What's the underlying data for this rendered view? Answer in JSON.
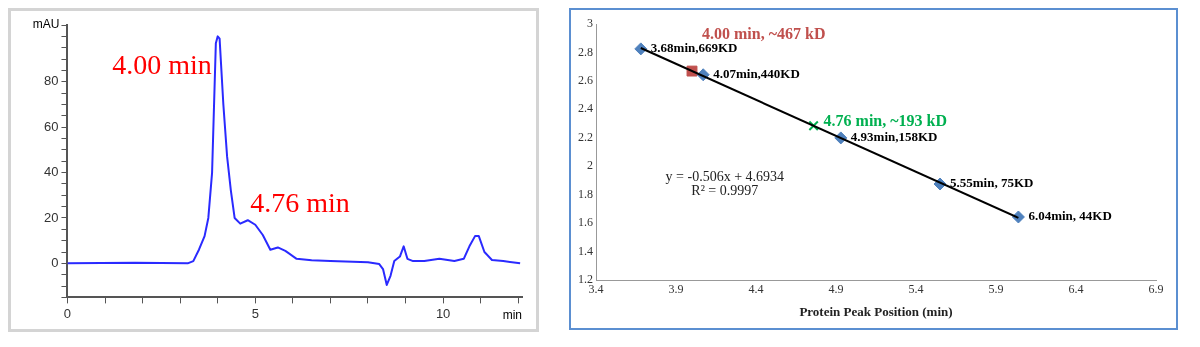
{
  "chart_data": [
    {
      "type": "line",
      "xlabel": "min",
      "ylabel": "mAU",
      "color": "#2a2aff",
      "marker": "none",
      "grid": false,
      "legend": false,
      "x": [
        0,
        1.8,
        3.2,
        3.35,
        3.5,
        3.65,
        3.75,
        3.85,
        3.95,
        4.0,
        4.05,
        4.15,
        4.25,
        4.35,
        4.45,
        4.6,
        4.8,
        5.0,
        5.2,
        5.4,
        5.6,
        5.8,
        6.1,
        6.5,
        7,
        8,
        8.3,
        8.4,
        8.5,
        8.6,
        8.7,
        8.85,
        8.95,
        9.05,
        9.2,
        9.5,
        9.9,
        10.3,
        10.55,
        10.7,
        10.85,
        10.95,
        11.1,
        11.3,
        11.6,
        12.05
      ],
      "values": [
        0,
        0.3,
        0,
        1,
        6,
        12,
        20,
        40,
        97,
        100,
        99,
        70,
        47,
        32,
        20,
        17.5,
        19,
        17,
        12.5,
        6,
        7,
        5.5,
        2,
        1.4,
        1,
        0.5,
        -0.3,
        -2.5,
        -9.5,
        -5.5,
        1,
        3,
        7.5,
        2,
        1,
        1,
        2,
        1,
        2,
        7.5,
        12,
        12,
        5,
        1.5,
        1,
        0
      ],
      "xlim": [
        0,
        12.1
      ],
      "xticks": [
        0,
        {
          "value": 1,
          "label": null
        },
        {
          "value": 2,
          "label": null
        },
        {
          "value": 3,
          "label": null
        },
        {
          "value": 4,
          "label": null
        },
        5,
        {
          "value": 6,
          "label": null
        },
        {
          "value": 7,
          "label": null
        },
        {
          "value": 8,
          "label": null
        },
        {
          "value": 9,
          "label": null
        },
        10,
        {
          "value": 11,
          "label": null
        },
        {
          "value": 12,
          "label": null
        }
      ],
      "ylim": [
        -15,
        105
      ],
      "yticks": [
        {
          "value": -15,
          "label": null
        },
        {
          "value": -10,
          "label": null
        },
        {
          "value": -5,
          "label": null
        },
        0,
        {
          "value": 5,
          "label": null
        },
        {
          "value": 10,
          "label": null
        },
        {
          "value": 15,
          "label": null
        },
        20,
        {
          "value": 25,
          "label": null
        },
        {
          "value": 30,
          "label": null
        },
        {
          "value": 35,
          "label": null
        },
        40,
        {
          "value": 45,
          "label": null
        },
        {
          "value": 50,
          "label": null
        },
        {
          "value": 55,
          "label": null
        },
        60,
        {
          "value": 65,
          "label": null
        },
        {
          "value": 70,
          "label": null
        },
        {
          "value": 75,
          "label": null
        },
        80,
        {
          "value": 85,
          "label": null
        },
        {
          "value": 90,
          "label": null
        },
        {
          "value": 95,
          "label": null
        },
        {
          "value": 100,
          "label": null
        },
        {
          "value": 105,
          "label": null
        }
      ],
      "annotations": [
        {
          "text": "4.00 min",
          "x": 4.0,
          "y": 100
        },
        {
          "text": "4.76 min",
          "x": 4.76,
          "y": 19
        }
      ]
    },
    {
      "type": "scatter",
      "xlabel": "Protein Peak Position (min)",
      "grid": false,
      "legend": false,
      "xlim": [
        3.4,
        6.9
      ],
      "xticks": [
        3.4,
        3.9,
        4.4,
        4.9,
        5.4,
        5.9,
        6.4,
        6.9
      ],
      "ylim": [
        1.2,
        3
      ],
      "yticks": [
        1.2,
        1.4,
        1.6,
        1.8,
        2,
        2.2,
        2.4,
        2.6,
        2.8,
        3
      ],
      "series": [
        {
          "color": "#4f81bd",
          "marker": "diamond",
          "x": [
            3.68,
            4.07,
            4.93,
            5.55,
            6.04
          ],
          "values": [
            2.825,
            2.643,
            2.199,
            1.875,
            1.643
          ],
          "value_labels": [
            "3.68min,669KD",
            "4.07min,440KD",
            "4.93min,158KD",
            "5.55min, 75KD",
            "6.04min, 44KD"
          ]
        },
        {
          "color": "#c0504d",
          "marker": "square",
          "x": [
            4.0
          ],
          "values": [
            2.669
          ],
          "value_labels": [
            "4.00 min, ~467 kD"
          ]
        },
        {
          "color": "#00b050",
          "marker": "cross",
          "x": [
            4.76
          ],
          "values": [
            2.285
          ],
          "value_labels": [
            "4.76 min, ~193 kD"
          ]
        },
        {
          "type": "line",
          "color": "#000000",
          "marker": "none",
          "x": [
            3.68,
            6.04
          ],
          "values": [
            2.831,
            1.637
          ]
        }
      ],
      "annotations": [
        "y = -0.506x + 4.6934",
        "R² = 0.9997"
      ]
    }
  ]
}
